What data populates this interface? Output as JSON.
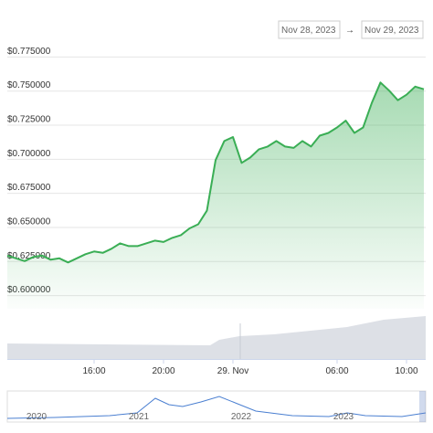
{
  "date_range": {
    "from": "Nov 28, 2023",
    "separator": "→",
    "to": "Nov 29, 2023"
  },
  "chart_data": {
    "type": "area",
    "color": "#3aae55",
    "grid": true,
    "x": [
      "2023-11-28 11:00",
      "2023-11-28 11:30",
      "2023-11-28 12:00",
      "2023-11-28 12:30",
      "2023-11-28 13:00",
      "2023-11-28 13:30",
      "2023-11-28 14:00",
      "2023-11-28 14:30",
      "2023-11-28 15:00",
      "2023-11-28 15:30",
      "2023-11-28 16:00",
      "2023-11-28 16:30",
      "2023-11-28 17:00",
      "2023-11-28 17:30",
      "2023-11-28 18:00",
      "2023-11-28 18:30",
      "2023-11-28 19:00",
      "2023-11-28 19:30",
      "2023-11-28 20:00",
      "2023-11-28 20:30",
      "2023-11-28 21:00",
      "2023-11-28 21:30",
      "2023-11-28 22:00",
      "2023-11-28 22:30",
      "2023-11-28 23:00",
      "2023-11-28 23:30",
      "2023-11-29 00:00",
      "2023-11-29 00:30",
      "2023-11-29 01:00",
      "2023-11-29 01:30",
      "2023-11-29 02:00",
      "2023-11-29 02:30",
      "2023-11-29 03:00",
      "2023-11-29 03:30",
      "2023-11-29 04:00",
      "2023-11-29 04:30",
      "2023-11-29 05:00",
      "2023-11-29 05:30",
      "2023-11-29 06:00",
      "2023-11-29 06:30",
      "2023-11-29 07:00",
      "2023-11-29 07:30",
      "2023-11-29 08:00",
      "2023-11-29 08:30",
      "2023-11-29 09:00",
      "2023-11-29 09:30",
      "2023-11-29 10:00",
      "2023-11-29 10:30",
      "2023-11-29 11:00"
    ],
    "values": [
      0.629,
      0.627,
      0.625,
      0.628,
      0.629,
      0.626,
      0.627,
      0.624,
      0.627,
      0.63,
      0.632,
      0.631,
      0.634,
      0.638,
      0.636,
      0.636,
      0.638,
      0.64,
      0.639,
      0.642,
      0.644,
      0.649,
      0.652,
      0.662,
      0.699,
      0.713,
      0.716,
      0.697,
      0.701,
      0.707,
      0.709,
      0.713,
      0.709,
      0.708,
      0.713,
      0.709,
      0.717,
      0.719,
      0.723,
      0.728,
      0.719,
      0.723,
      0.741,
      0.756,
      0.75,
      0.743,
      0.747,
      0.753,
      0.751
    ],
    "xlim": [
      "2023-11-28 11:00",
      "2023-11-29 11:00"
    ],
    "xticks": [
      {
        "value": "2023-11-28 16:00",
        "label": "16:00"
      },
      {
        "value": "2023-11-28 20:00",
        "label": "20:00"
      },
      {
        "value": "2023-11-29 00:00",
        "label": "29. Nov"
      },
      {
        "value": "2023-11-29 06:00",
        "label": "06:00"
      },
      {
        "value": "2023-11-29 10:00",
        "label": "10:00"
      }
    ],
    "ylim": [
      0.59,
      0.785
    ],
    "yticks": [
      {
        "value": 0.6,
        "label": "$0.600000"
      },
      {
        "value": 0.625,
        "label": "$0.625000"
      },
      {
        "value": 0.65,
        "label": "$0.650000"
      },
      {
        "value": 0.675,
        "label": "$0.675000"
      },
      {
        "value": 0.7,
        "label": "$0.700000"
      },
      {
        "value": 0.725,
        "label": "$0.725000"
      },
      {
        "value": 0.75,
        "label": "$0.750000"
      },
      {
        "value": 0.775,
        "label": "$0.775000"
      }
    ]
  },
  "navigator": {
    "labels": [
      "2020",
      "2021",
      "2022",
      "2023"
    ]
  }
}
